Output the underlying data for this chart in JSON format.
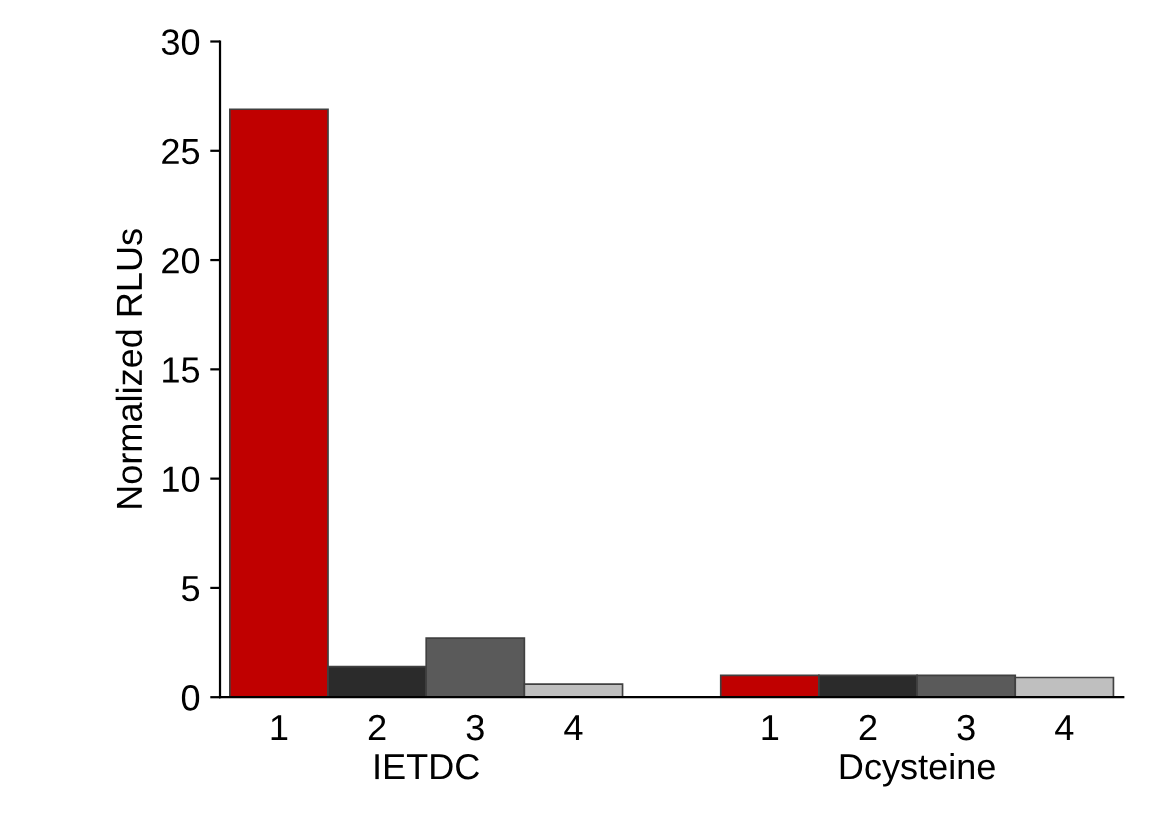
{
  "chart_data": {
    "type": "bar",
    "ylabel": "Normalized RLUs",
    "categories": [
      "1",
      "2",
      "3",
      "4",
      null,
      "1",
      "2",
      "3",
      "4"
    ],
    "values": [
      26.9,
      1.4,
      2.7,
      0.6,
      null,
      1.0,
      1.0,
      1.0,
      0.9
    ],
    "colors": [
      "#c00000",
      "#2b2b2b",
      "#5a5a5a",
      "#bfbfbf",
      "#ffffff",
      "#c00000",
      "#2b2b2b",
      "#5a5a5a",
      "#bfbfbf"
    ],
    "annotations": [
      "IETDC",
      "Dcysteine"
    ],
    "ylim": [
      0,
      30
    ],
    "yticks": [
      0,
      5,
      10,
      15,
      20,
      25,
      30
    ],
    "grid": false,
    "legend": false
  }
}
